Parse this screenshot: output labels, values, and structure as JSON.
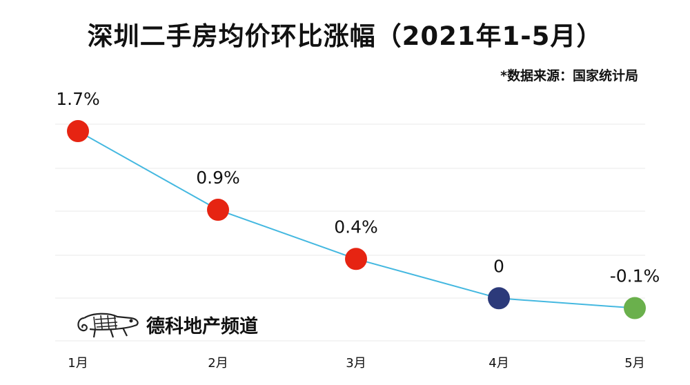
{
  "title": "深圳二手房均价环比涨幅（2021年1-5月）",
  "source": "*数据来源：国家统计局",
  "watermark": {
    "text": "德科地产频道",
    "icon": "chameleon-logo-icon"
  },
  "colors": {
    "line": "#44b8e0",
    "positive": "#e62412",
    "zero": "#2c3a7a",
    "negative": "#6ab04c",
    "grid": "#e8e8e8"
  },
  "chart_data": {
    "type": "line",
    "categories": [
      "1月",
      "2月",
      "3月",
      "4月",
      "5月"
    ],
    "values": [
      1.7,
      0.9,
      0.4,
      0,
      -0.1
    ],
    "data_labels": [
      "1.7%",
      "0.9%",
      "0.4%",
      "0",
      "-0.1%"
    ],
    "point_colors": [
      "#e62412",
      "#e62412",
      "#e62412",
      "#2c3a7a",
      "#6ab04c"
    ],
    "title": "深圳二手房均价环比涨幅（2021年1-5月）",
    "xlabel": "",
    "ylabel": "",
    "grid": true,
    "legend": "none"
  }
}
